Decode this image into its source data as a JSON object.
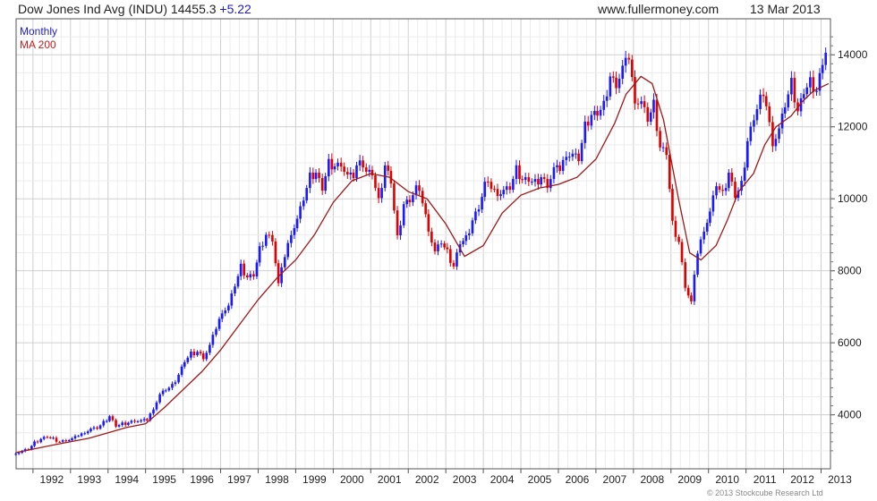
{
  "header": {
    "title": "Dow Jones Ind Avg (INDU) 14455.3",
    "change": "+5.22",
    "site": "www.fullermoney.com",
    "date": "13 Mar 2013"
  },
  "footer": {
    "credit": "© 2013 Stockcube Research Ltd"
  },
  "colors": {
    "up": "#1a1aff",
    "down": "#e00000",
    "ma": "#a01818",
    "grid": "#d8d8d8"
  },
  "chart_data": {
    "type": "candlestick",
    "title": "Dow Jones Ind Avg (INDU) 14455.3",
    "legend": [
      "Monthly",
      "MA 200"
    ],
    "legend_position": "top-left",
    "y_axis_position": "right",
    "ylim": [
      2500,
      15000
    ],
    "y_ticks": [
      4000,
      6000,
      8000,
      10000,
      12000,
      14000
    ],
    "xlim": [
      1991.55,
      2013.25
    ],
    "x_ticks": [
      "1992",
      "1993",
      "1994",
      "1995",
      "1996",
      "1997",
      "1998",
      "1999",
      "2000",
      "2001",
      "2002",
      "2003",
      "2004",
      "2005",
      "2006",
      "2007",
      "2008",
      "2009",
      "2010",
      "2011",
      "2012",
      "2013"
    ],
    "grid": true,
    "series": [
      {
        "name": "Monthly",
        "kind": "monthly-close",
        "start": "1991-07",
        "x": [
          1991.54,
          1991.71,
          1991.88,
          1992.04,
          1992.21,
          1992.38,
          1992.54,
          1992.71,
          1992.88,
          1993.04,
          1993.21,
          1993.38,
          1993.54,
          1993.71,
          1993.88,
          1994.04,
          1994.21,
          1994.38,
          1994.54,
          1994.71,
          1994.88,
          1995.04,
          1995.21,
          1995.38,
          1995.54,
          1995.71,
          1995.88,
          1996.04,
          1996.21,
          1996.38,
          1996.54,
          1996.71,
          1996.88,
          1997.04,
          1997.21,
          1997.38,
          1997.54,
          1997.71,
          1997.88,
          1998.04,
          1998.21,
          1998.38,
          1998.54,
          1998.71,
          1998.88,
          1999.04,
          1999.21,
          1999.38,
          1999.54,
          1999.71,
          1999.88,
          2000.04,
          2000.21,
          2000.38,
          2000.54,
          2000.71,
          2000.88,
          2001.04,
          2001.21,
          2001.38,
          2001.54,
          2001.71,
          2001.88,
          2002.04,
          2002.21,
          2002.38,
          2002.54,
          2002.71,
          2002.88,
          2003.04,
          2003.21,
          2003.38,
          2003.54,
          2003.71,
          2003.88,
          2004.04,
          2004.21,
          2004.38,
          2004.54,
          2004.71,
          2004.88,
          2005.04,
          2005.21,
          2005.38,
          2005.54,
          2005.71,
          2005.88,
          2006.04,
          2006.21,
          2006.38,
          2006.54,
          2006.71,
          2006.88,
          2007.04,
          2007.21,
          2007.38,
          2007.54,
          2007.71,
          2007.88,
          2008.04,
          2008.21,
          2008.38,
          2008.54,
          2008.71,
          2008.88,
          2009.04,
          2009.21,
          2009.38,
          2009.54,
          2009.71,
          2009.88,
          2010.04,
          2010.21,
          2010.38,
          2010.54,
          2010.71,
          2010.88,
          2011.04,
          2011.21,
          2011.38,
          2011.54,
          2011.71,
          2011.88,
          2012.04,
          2012.21,
          2012.38,
          2012.54,
          2012.71,
          2012.88,
          2013.04,
          2013.21
        ],
        "y": [
          2950,
          2980,
          3050,
          3220,
          3320,
          3400,
          3330,
          3250,
          3300,
          3320,
          3420,
          3530,
          3600,
          3630,
          3780,
          3950,
          3700,
          3750,
          3780,
          3850,
          3820,
          3850,
          4200,
          4550,
          4700,
          4800,
          5100,
          5500,
          5700,
          5750,
          5600,
          5900,
          6400,
          6900,
          7000,
          7600,
          8100,
          7800,
          7900,
          8600,
          9000,
          8900,
          7600,
          8400,
          9100,
          9400,
          10000,
          10600,
          10700,
          10300,
          11000,
          10900,
          11000,
          10600,
          10600,
          11200,
          10700,
          10700,
          9900,
          10900,
          10500,
          8900,
          9850,
          10000,
          10300,
          9900,
          9200,
          8500,
          8800,
          8500,
          8100,
          8800,
          8900,
          9400,
          9800,
          10400,
          10300,
          10200,
          10200,
          10300,
          10800,
          10500,
          10550,
          10450,
          10600,
          10400,
          10800,
          10800,
          11300,
          11200,
          11100,
          12000,
          12300,
          12400,
          12600,
          13400,
          13200,
          13600,
          13900,
          12800,
          12650,
          12200,
          12600,
          11400,
          11300,
          9300,
          8800,
          7600,
          7100,
          8500,
          9200,
          9600,
          10400,
          10100,
          10700,
          10100,
          10400,
          11600,
          12300,
          12800,
          12600,
          11600,
          11900,
          12600,
          13200,
          12400,
          13000,
          13250,
          13000,
          13850,
          14400
        ]
      },
      {
        "name": "MA 200",
        "kind": "moving-average",
        "x": [
          1991.55,
          1992.5,
          1993.5,
          1994.5,
          1995.0,
          1995.5,
          1996.0,
          1996.5,
          1997.0,
          1997.5,
          1998.0,
          1998.5,
          1999.0,
          1999.5,
          2000.0,
          2000.5,
          2001.0,
          2001.5,
          2002.0,
          2002.5,
          2003.0,
          2003.5,
          2004.0,
          2004.5,
          2005.0,
          2005.5,
          2006.0,
          2006.5,
          2007.0,
          2007.5,
          2007.8,
          2008.2,
          2008.5,
          2008.8,
          2009.2,
          2009.5,
          2009.8,
          2010.2,
          2010.5,
          2010.8,
          2011.2,
          2011.5,
          2011.8,
          2012.2,
          2012.5,
          2012.8,
          2013.2
        ],
        "y": [
          2950,
          3150,
          3350,
          3650,
          3750,
          4200,
          4700,
          5200,
          5800,
          6500,
          7200,
          7800,
          8300,
          9000,
          9900,
          10500,
          10700,
          10600,
          10200,
          10000,
          9300,
          8400,
          8700,
          9600,
          10100,
          10300,
          10400,
          10600,
          11100,
          12100,
          12900,
          13400,
          13200,
          12200,
          10000,
          8500,
          8300,
          8700,
          9400,
          10200,
          10700,
          11500,
          12000,
          12300,
          12700,
          13000,
          13200
        ]
      }
    ],
    "candles": [
      {
        "d": "u",
        "o": 2900,
        "c": 3010
      },
      {
        "d": "d",
        "o": 3010,
        "c": 2920
      },
      {
        "d": "u",
        "o": 2950,
        "c": 3120
      },
      {
        "d": "u",
        "o": 3080,
        "c": 3240
      },
      {
        "d": "d",
        "o": 3260,
        "c": 3180
      },
      {
        "d": "u",
        "o": 3300,
        "c": 3420
      },
      {
        "d": "u",
        "o": 3250,
        "c": 3380
      },
      {
        "d": "d",
        "o": 3330,
        "c": 3240
      }
    ]
  }
}
